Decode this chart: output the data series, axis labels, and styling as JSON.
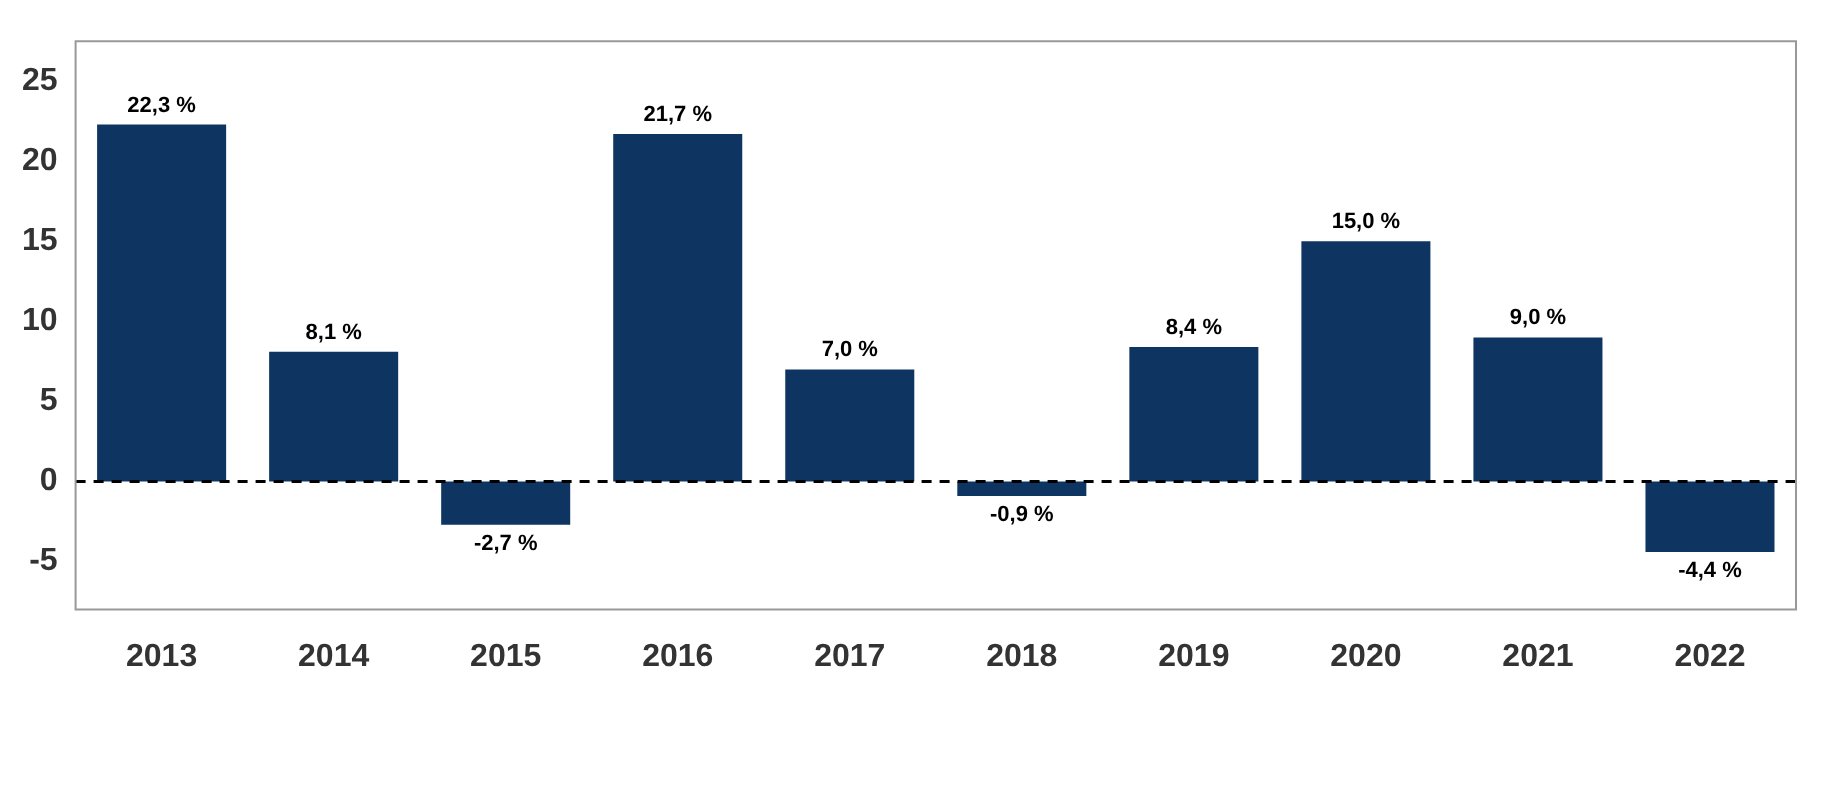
{
  "chart_data": {
    "type": "bar",
    "categories": [
      "2013",
      "2014",
      "2015",
      "2016",
      "2017",
      "2018",
      "2019",
      "2020",
      "2021",
      "2022"
    ],
    "values": [
      22.3,
      8.1,
      -2.7,
      21.7,
      7.0,
      -0.9,
      8.4,
      15.0,
      9.0,
      -4.4
    ],
    "value_labels": [
      "22,3 %",
      "8,1 %",
      "-2,7 %",
      "21,7 %",
      "7,0 %",
      "-0,9 %",
      "8,4 %",
      "15,0 %",
      "9,0 %",
      "-4,4 %"
    ],
    "color": "#0e3461",
    "ylim": [
      -8,
      27.5
    ],
    "yticks": [
      -5,
      0,
      5,
      10,
      15,
      20,
      25
    ],
    "grid": false,
    "legend": false,
    "ref_lines": [
      {
        "axis": "y",
        "value": 0,
        "color": "#000000",
        "line_style": "dashed"
      }
    ]
  }
}
